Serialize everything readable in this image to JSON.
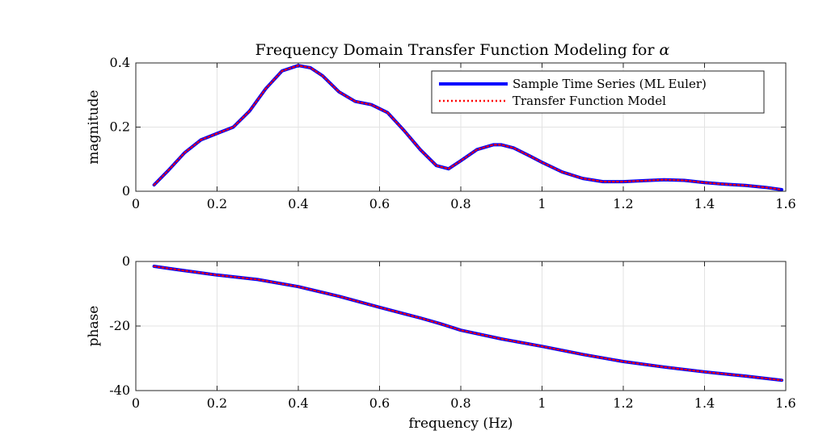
{
  "chart_data": [
    {
      "type": "line",
      "title": "Frequency Domain Transfer Function Modeling for",
      "title_symbol": "α",
      "xlabel": "",
      "ylabel": "magnitude",
      "xlim": [
        0,
        1.6
      ],
      "ylim": [
        0,
        0.4
      ],
      "xticks": [
        "0",
        "0.2",
        "0.4",
        "0.6",
        "0.8",
        "1",
        "1.2",
        "1.4",
        "1.6"
      ],
      "yticks": [
        "0",
        "0.2",
        "0.4"
      ],
      "grid": true,
      "legend_position": "top-right",
      "series": [
        {
          "name": "Sample Time Series (ML Euler)",
          "color": "#0000ff",
          "style": "solid",
          "x": [
            0.045,
            0.08,
            0.12,
            0.16,
            0.2,
            0.24,
            0.28,
            0.32,
            0.36,
            0.4,
            0.43,
            0.46,
            0.5,
            0.54,
            0.58,
            0.62,
            0.66,
            0.7,
            0.74,
            0.77,
            0.8,
            0.84,
            0.88,
            0.9,
            0.93,
            0.97,
            1.0,
            1.05,
            1.1,
            1.15,
            1.2,
            1.25,
            1.3,
            1.35,
            1.4,
            1.45,
            1.5,
            1.55,
            1.59
          ],
          "y": [
            0.02,
            0.065,
            0.12,
            0.16,
            0.18,
            0.2,
            0.25,
            0.32,
            0.375,
            0.392,
            0.385,
            0.36,
            0.31,
            0.28,
            0.27,
            0.245,
            0.19,
            0.13,
            0.08,
            0.07,
            0.095,
            0.13,
            0.145,
            0.145,
            0.135,
            0.11,
            0.09,
            0.06,
            0.04,
            0.03,
            0.03,
            0.033,
            0.036,
            0.034,
            0.027,
            0.022,
            0.018,
            0.012,
            0.005
          ]
        },
        {
          "name": "Transfer Function Model",
          "color": "#ff0000",
          "style": "dotted",
          "x": [
            0.045,
            0.08,
            0.12,
            0.16,
            0.2,
            0.24,
            0.28,
            0.32,
            0.36,
            0.4,
            0.43,
            0.46,
            0.5,
            0.54,
            0.58,
            0.62,
            0.66,
            0.7,
            0.74,
            0.77,
            0.8,
            0.84,
            0.88,
            0.9,
            0.93,
            0.97,
            1.0,
            1.05,
            1.1,
            1.15,
            1.2,
            1.25,
            1.3,
            1.35,
            1.4,
            1.45,
            1.5,
            1.55,
            1.59
          ],
          "y": [
            0.02,
            0.065,
            0.12,
            0.16,
            0.18,
            0.2,
            0.25,
            0.32,
            0.375,
            0.392,
            0.385,
            0.36,
            0.31,
            0.28,
            0.27,
            0.245,
            0.19,
            0.13,
            0.08,
            0.07,
            0.095,
            0.13,
            0.145,
            0.145,
            0.135,
            0.11,
            0.09,
            0.06,
            0.04,
            0.03,
            0.03,
            0.033,
            0.036,
            0.034,
            0.027,
            0.022,
            0.018,
            0.012,
            0.005
          ]
        }
      ]
    },
    {
      "type": "line",
      "title": "",
      "xlabel": "frequency (Hz)",
      "ylabel": "phase",
      "xlim": [
        0,
        1.6
      ],
      "ylim": [
        -40,
        0
      ],
      "xticks": [
        "0",
        "0.2",
        "0.4",
        "0.6",
        "0.8",
        "1",
        "1.2",
        "1.4",
        "1.6"
      ],
      "yticks": [
        "0",
        "-20",
        "-40"
      ],
      "grid": true,
      "series": [
        {
          "color": "#0000ff",
          "style": "solid",
          "x": [
            0.045,
            0.1,
            0.2,
            0.3,
            0.4,
            0.5,
            0.6,
            0.7,
            0.75,
            0.8,
            0.9,
            1.0,
            1.1,
            1.2,
            1.3,
            1.4,
            1.5,
            1.59
          ],
          "y": [
            -1.5,
            -2.5,
            -4.2,
            -5.6,
            -7.8,
            -10.8,
            -14.2,
            -17.5,
            -19.3,
            -21.3,
            -24,
            -26.3,
            -28.8,
            -31,
            -32.7,
            -34.2,
            -35.5,
            -36.8
          ]
        },
        {
          "color": "#ff0000",
          "style": "dotted",
          "x": [
            0.045,
            0.1,
            0.2,
            0.3,
            0.4,
            0.5,
            0.6,
            0.7,
            0.75,
            0.8,
            0.9,
            1.0,
            1.1,
            1.2,
            1.3,
            1.4,
            1.5,
            1.59
          ],
          "y": [
            -1.5,
            -2.5,
            -4.2,
            -5.6,
            -7.8,
            -10.8,
            -14.2,
            -17.5,
            -19.3,
            -21.3,
            -24,
            -26.3,
            -28.8,
            -31,
            -32.7,
            -34.2,
            -35.5,
            -36.8
          ]
        }
      ]
    }
  ]
}
